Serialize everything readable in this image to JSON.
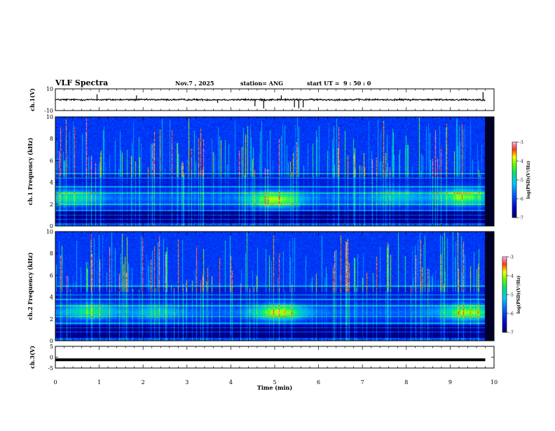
{
  "header": {
    "title": "VLF Spectra",
    "date": "Nov.7 , 2025",
    "station": "station= ANG",
    "start_label": "start UT =",
    "start_time": "9 : 50 : 0"
  },
  "chart_data": {
    "type": "heatmap",
    "title": "VLF Spectra",
    "xlabel": "Time (min)",
    "xlim": [
      0,
      10
    ],
    "xticks": [
      "0",
      "1",
      "2",
      "3",
      "4",
      "5",
      "6",
      "7",
      "8",
      "9",
      "10"
    ],
    "panels": [
      {
        "name": "ch.1 waveform",
        "type": "line",
        "ylabel": "ch.1(V)",
        "ylim": [
          -10,
          10
        ],
        "yticks": [
          "10",
          "-10"
        ],
        "baseline": 0,
        "noise_amplitude": 1.2,
        "spikes": [
          {
            "t": 0.95,
            "v": 5
          },
          {
            "t": 1.85,
            "v": 4
          },
          {
            "t": 3.7,
            "v": -3
          },
          {
            "t": 4.55,
            "v": -6
          },
          {
            "t": 4.75,
            "v": -8
          },
          {
            "t": 5.15,
            "v": 4
          },
          {
            "t": 5.45,
            "v": -7
          },
          {
            "t": 5.55,
            "v": -8
          },
          {
            "t": 5.65,
            "v": -7
          },
          {
            "t": 9.75,
            "v": 7
          }
        ],
        "data_end": 9.8
      },
      {
        "name": "ch.1 spectrogram",
        "type": "heatmap",
        "ylabel": "ch.1 Frequency (kHz)",
        "ylim": [
          0,
          10
        ],
        "yticks": [
          "0",
          "2",
          "4",
          "6",
          "8",
          "10"
        ],
        "colorbar": {
          "label": "log(PSD)(V²/Hz)",
          "range": [
            -7,
            -3
          ],
          "ticks": [
            "-3",
            "-4",
            "-5",
            "-6",
            "-7"
          ]
        },
        "hiss_band_khz": [
          1.5,
          3.6
        ],
        "hiss_peaks": [
          {
            "t": 0.4,
            "f": 2.6,
            "strength": 0.55
          },
          {
            "t": 5.0,
            "f": 2.4,
            "strength": 0.95
          },
          {
            "t": 9.3,
            "f": 2.7,
            "strength": 0.85
          },
          {
            "t": 7.8,
            "f": 2.7,
            "strength": 0.35
          }
        ],
        "line_frequencies_khz": [
          0.6,
          1.0,
          1.4,
          2.0,
          3.0,
          3.6,
          4.4,
          4.8
        ],
        "data_end": 9.8
      },
      {
        "name": "ch.2 spectrogram",
        "type": "heatmap",
        "ylabel": "ch.2 Frequency (kHz)",
        "ylim": [
          0,
          10
        ],
        "yticks": [
          "0",
          "2",
          "4",
          "6",
          "8",
          "10"
        ],
        "colorbar": {
          "label": "log(PSD)(V²/Hz)",
          "range": [
            -7,
            -3
          ],
          "ticks": [
            "-3",
            "-4",
            "-5",
            "-6",
            "-7"
          ]
        },
        "hiss_band_khz": [
          1.6,
          3.6
        ],
        "hiss_peaks": [
          {
            "t": 0.8,
            "f": 2.7,
            "strength": 0.6
          },
          {
            "t": 5.1,
            "f": 2.6,
            "strength": 1.0
          },
          {
            "t": 9.4,
            "f": 2.6,
            "strength": 0.9
          },
          {
            "t": 2.3,
            "f": 2.6,
            "strength": 0.35
          }
        ],
        "line_frequencies_khz": [
          0.8,
          1.2,
          1.6,
          2.2,
          3.2,
          3.8,
          4.2,
          5.0
        ],
        "data_end": 9.8
      },
      {
        "name": "ch.3 waveform",
        "type": "line",
        "ylabel": "ch.3(V)",
        "ylim": [
          -5,
          5
        ],
        "yticks": [
          "5",
          "0",
          "-5"
        ],
        "baseline": -1.2,
        "noise_amplitude": 0.15,
        "data_end": 9.8
      }
    ]
  }
}
